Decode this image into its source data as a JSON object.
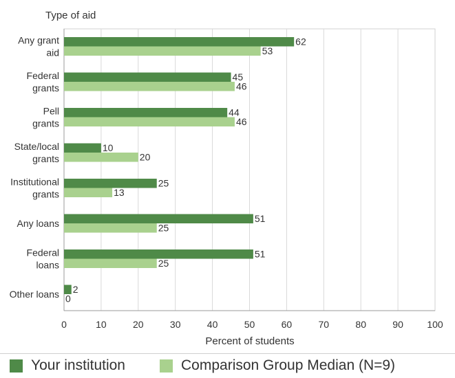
{
  "chart_data": {
    "type": "bar",
    "orientation": "horizontal",
    "y_axis_title": "Type of aid",
    "xlabel": "Percent of students",
    "xlim": [
      0,
      100
    ],
    "x_ticks": [
      0,
      10,
      20,
      30,
      40,
      50,
      60,
      70,
      80,
      90,
      100
    ],
    "grid": true,
    "legend_position": "bottom",
    "categories": [
      [
        "Any grant",
        "aid"
      ],
      [
        "Federal",
        "grants"
      ],
      [
        "Pell",
        "grants"
      ],
      [
        "State/local",
        "grants"
      ],
      [
        "Institutional",
        "grants"
      ],
      [
        "Any loans"
      ],
      [
        "Federal",
        "loans"
      ],
      [
        "Other loans"
      ]
    ],
    "series": [
      {
        "name": "Your institution",
        "color": "#4f8a48",
        "values": [
          62,
          45,
          44,
          10,
          25,
          51,
          51,
          2
        ]
      },
      {
        "name": "Comparison Group Median (N=9)",
        "color": "#a9d18e",
        "values": [
          53,
          46,
          46,
          20,
          13,
          25,
          25,
          0
        ]
      }
    ]
  }
}
